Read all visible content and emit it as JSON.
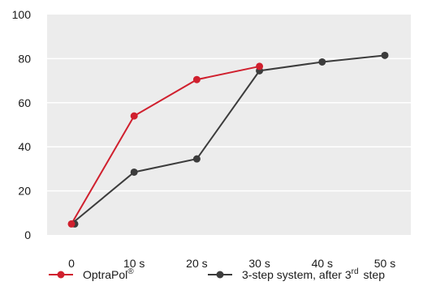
{
  "chart_data": {
    "type": "line",
    "categories": [
      "0",
      "10 s",
      "20 s",
      "30 s",
      "40 s",
      "50 s"
    ],
    "ylim": [
      0,
      100
    ],
    "yticks": [
      0,
      20,
      40,
      60,
      80,
      100
    ],
    "grid": "horizontal",
    "legend_position": "bottom",
    "series": [
      {
        "name": "OptraPol®",
        "color": "#d0202e",
        "values": [
          5,
          54,
          70.5,
          76.5,
          null,
          null
        ]
      },
      {
        "name": "3-step system, after 3rd step",
        "color": "#3c3c3c",
        "values": [
          5,
          28.5,
          34.5,
          74.5,
          78.5,
          81.5
        ]
      }
    ],
    "legend": {
      "optrapol": {
        "base": "OptraPol",
        "sup": "®"
      },
      "threestep": {
        "base": "3-step system, after 3",
        "sup": "rd",
        "tail": "step"
      }
    },
    "colors": {
      "plot_background": "#ececec",
      "grid": "#ffffff"
    }
  }
}
